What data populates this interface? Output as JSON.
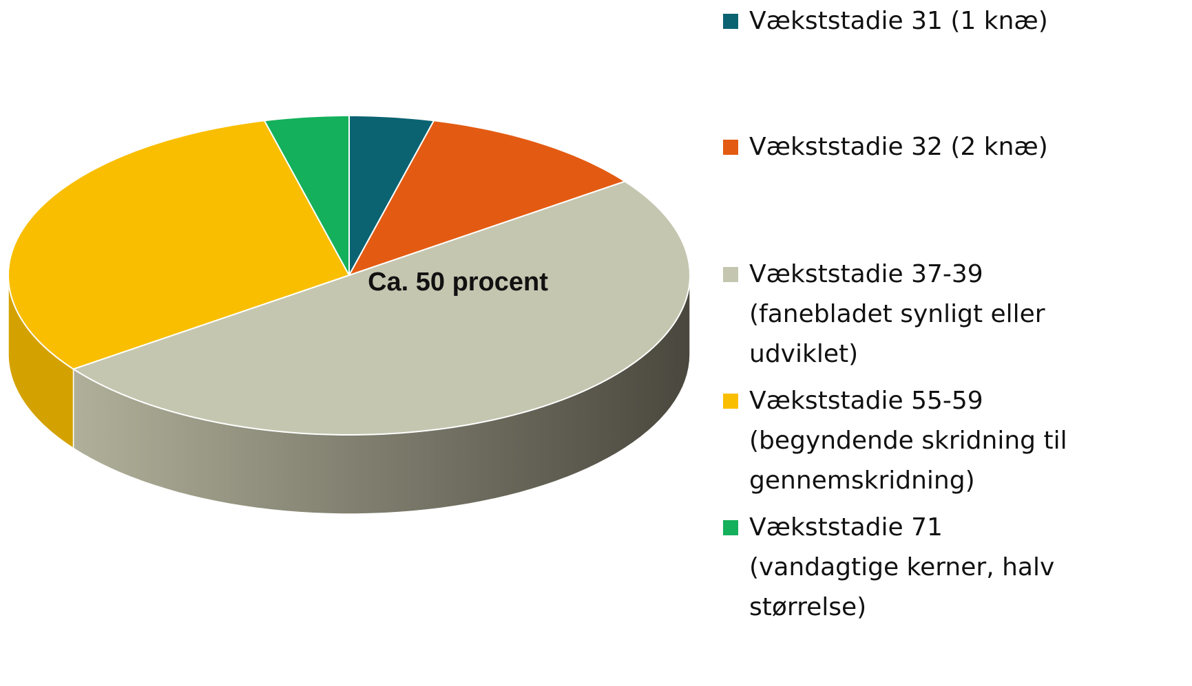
{
  "chart_data": {
    "type": "pie",
    "categories": [
      "Vækststadie 31 (1 knæ)",
      "Vækststadie 32 (2 knæ)",
      "Vækststadie 37-39 (fanebladet synligt eller udviklet)",
      "Vækststadie 55-59 (begyndende skridning til gennemskridning)",
      "Vækststadie 71 (vandagtige kerner, halv størrelse)"
    ],
    "values": [
      4,
      11,
      50,
      31,
      4
    ],
    "colors": [
      "#0b6372",
      "#e35b12",
      "#c5c6b0",
      "#f9be00",
      "#14b05b"
    ],
    "annotation": "Ca. 50 procent",
    "legend": "right"
  }
}
